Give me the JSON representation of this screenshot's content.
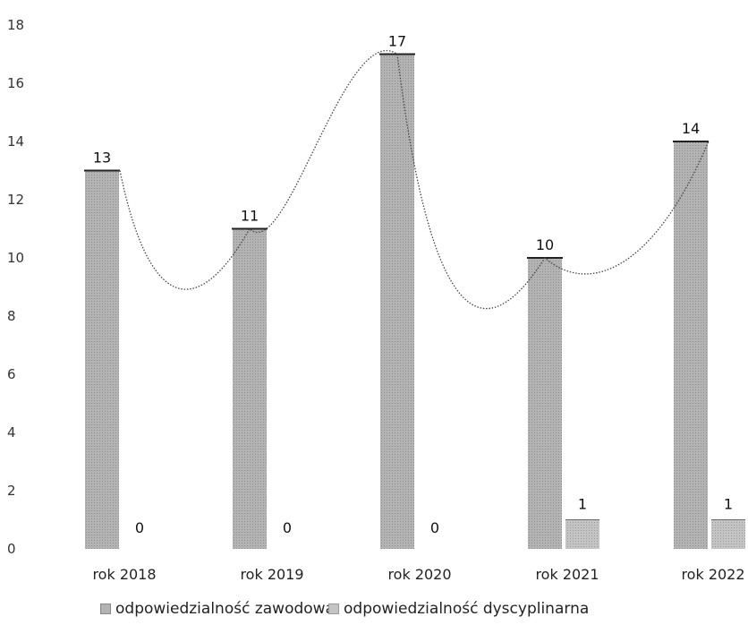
{
  "chart_data": {
    "type": "bar",
    "title": "",
    "xlabel": "",
    "ylabel": "",
    "ylim": [
      0,
      18
    ],
    "yticks": [
      0,
      2,
      4,
      6,
      8,
      10,
      12,
      14,
      16,
      18
    ],
    "categories": [
      "rok 2018",
      "rok 2019",
      "rok 2020",
      "rok 2021",
      "rok 2022"
    ],
    "series": [
      {
        "name": "odpowiedzialność zawodowa",
        "values": [
          13,
          11,
          17,
          10,
          14
        ],
        "color": "#b3b3b3"
      },
      {
        "name": "odpowiedzialność dyscyplinarna",
        "values": [
          0,
          0,
          0,
          1,
          1
        ],
        "color": "#c4c4c4"
      }
    ],
    "trendline": {
      "series": "odpowiedzialność zawodowa",
      "style": "smooth dotted curve",
      "color": "#444444"
    },
    "grid": false,
    "legend_position": "bottom"
  }
}
